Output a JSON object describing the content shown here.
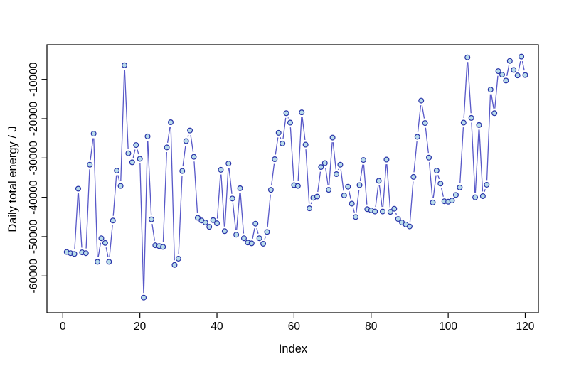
{
  "chart_data": {
    "type": "line",
    "subtype": "r-type-b-scatter-line",
    "title": "",
    "xlabel": "Index",
    "ylabel": "Daily total energy / J",
    "x_ticks": [
      0,
      20,
      40,
      60,
      80,
      100,
      120
    ],
    "y_ticks": [
      -10000,
      -20000,
      -30000,
      -40000,
      -50000,
      -60000
    ],
    "xlim": [
      -4,
      124
    ],
    "ylim": [
      -69000,
      -1700
    ],
    "grid": false,
    "legend": "none",
    "marker": "open-circle",
    "x_start_index": 1,
    "values": [
      -53900,
      -54200,
      -54400,
      -37800,
      -54000,
      -54200,
      -31700,
      -23800,
      -56400,
      -50400,
      -51600,
      -56400,
      -45900,
      -33200,
      -37100,
      -6400,
      -28800,
      -31100,
      -26700,
      -30200,
      -65500,
      -24500,
      -45600,
      -52200,
      -52400,
      -52600,
      -27300,
      -20900,
      -57200,
      -55600,
      -33300,
      -25700,
      -23000,
      -29700,
      -45200,
      -45900,
      -46400,
      -47500,
      -45800,
      -46600,
      -33000,
      -48600,
      -31400,
      -40300,
      -49500,
      -37700,
      -50400,
      -51500,
      -51700,
      -46700,
      -50400,
      -51800,
      -48800,
      -38100,
      -30300,
      -23600,
      -26300,
      -18600,
      -21000,
      -36900,
      -37100,
      -18400,
      -26600,
      -42800,
      -40100,
      -39800,
      -32300,
      -31300,
      -38100,
      -24800,
      -34100,
      -31700,
      -39500,
      -37300,
      -41600,
      -45000,
      -36900,
      -30500,
      -43000,
      -43300,
      -43600,
      -35800,
      -43600,
      -30400,
      -43700,
      -42900,
      -45500,
      -46400,
      -46900,
      -47400,
      -34800,
      -24600,
      -15400,
      -21100,
      -29900,
      -41300,
      -33200,
      -36500,
      -41000,
      -41100,
      -40800,
      -39400,
      -37500,
      -21000,
      -4400,
      -19800,
      -40000,
      -21600,
      -39700,
      -36800,
      -12600,
      -18600,
      -7900,
      -8800,
      -10300,
      -5300,
      -7600,
      -9000,
      -4200,
      -8900
    ],
    "colors": {
      "line": "#5858c8",
      "marker_stroke": "#2833a8",
      "marker_fill": "#b8dcea",
      "axis": "#000000",
      "background": "#ffffff"
    }
  }
}
